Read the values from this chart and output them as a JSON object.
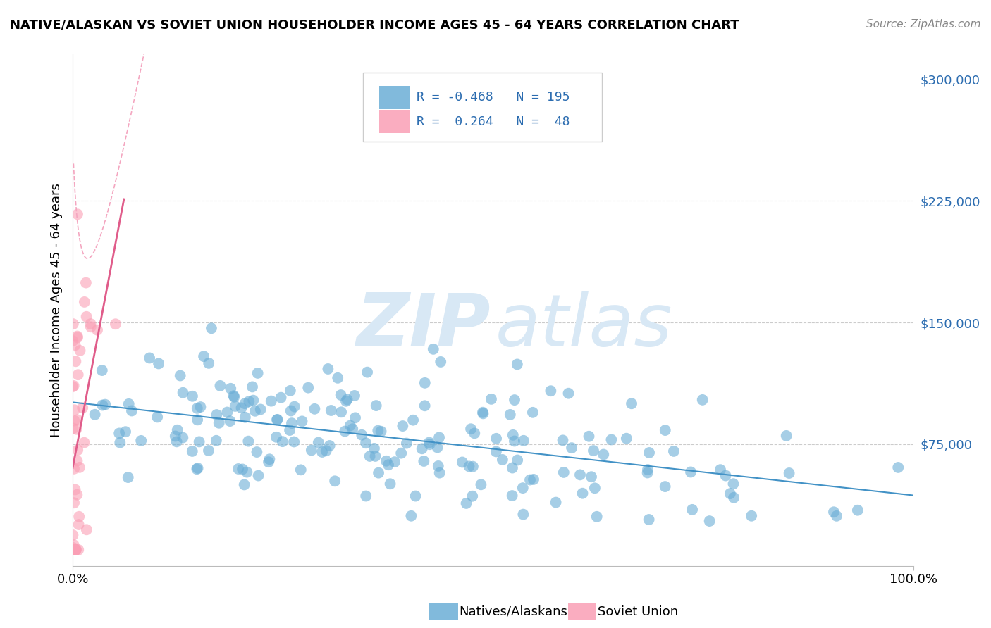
{
  "title": "NATIVE/ALASKAN VS SOVIET UNION HOUSEHOLDER INCOME AGES 45 - 64 YEARS CORRELATION CHART",
  "source": "Source: ZipAtlas.com",
  "ylabel": "Householder Income Ages 45 - 64 years",
  "xmin": 0.0,
  "xmax": 1.0,
  "ymin": 0,
  "ymax": 315000,
  "blue_R": -0.468,
  "blue_N": 195,
  "pink_R": 0.264,
  "pink_N": 48,
  "blue_color": "#6baed6",
  "blue_line_color": "#4292c6",
  "pink_color": "#fa9fb5",
  "pink_line_color": "#e05c8a",
  "pink_dash_color": "#f4a6c0",
  "watermark_color": "#d8e8f5",
  "legend_label_blue": "Natives/Alaskans",
  "legend_label_pink": "Soviet Union",
  "blue_seed": 42,
  "pink_seed": 7
}
